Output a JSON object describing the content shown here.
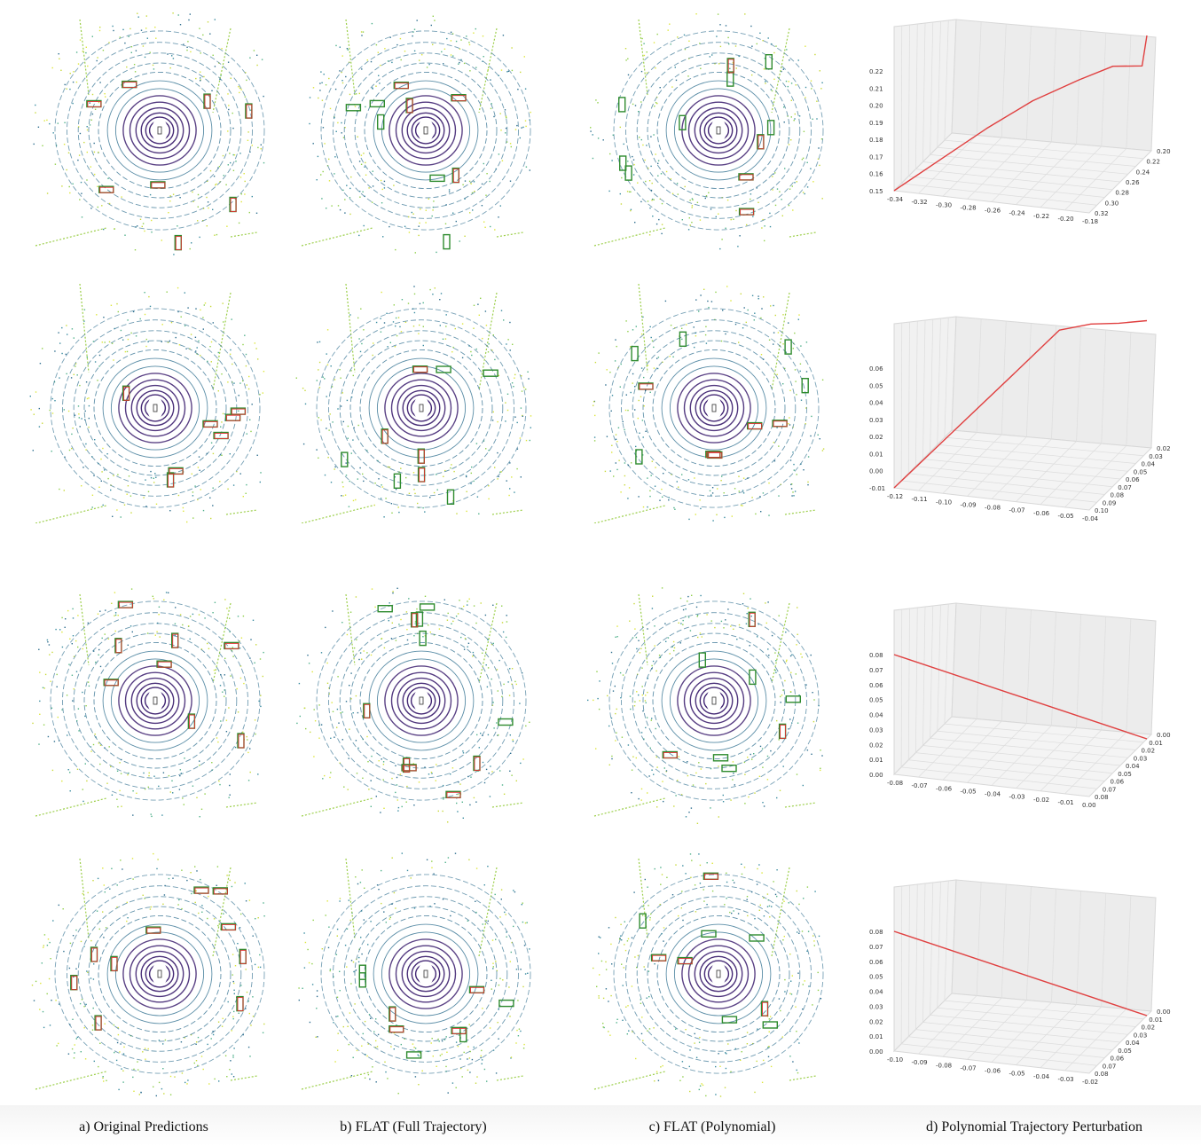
{
  "figure": {
    "captions": [
      "a) Original Predictions",
      "b) FLAT (Full Trajectory)",
      "c) FLAT (Polynomial)",
      "d) Polynomial Trajectory Perturbation"
    ],
    "colors": {
      "gt_box": "#2e8b2e",
      "pred_box": "#e03030",
      "trajectory": "#e04040",
      "ring_dark": "#3b1e6e",
      "ring_mid": "#2f6f8f",
      "far_points": "#c8d93a"
    },
    "icons": [
      "lidar-bev-scene",
      "3d-trajectory-plot"
    ]
  },
  "chart_data": [
    {
      "type": "line",
      "dims": 3,
      "x_ticks": [
        "-0.34",
        "-0.32",
        "-0.30",
        "-0.28",
        "-0.26",
        "-0.24",
        "-0.22",
        "-0.20",
        "-0.18"
      ],
      "y_ticks": [
        "0.20",
        "0.22",
        "0.24",
        "0.26",
        "0.28",
        "0.30",
        "0.32"
      ],
      "z_ticks": [
        "0.15",
        "0.16",
        "0.17",
        "0.18",
        "0.19",
        "0.20",
        "0.21",
        "0.22"
      ],
      "series": [
        {
          "x": [
            -0.34,
            -0.31,
            -0.28,
            -0.25,
            -0.22,
            -0.2,
            -0.18,
            -0.18
          ],
          "y": [
            0.32,
            0.3,
            0.28,
            0.26,
            0.24,
            0.22,
            0.21,
            0.2
          ],
          "z": [
            0.15,
            0.165,
            0.18,
            0.193,
            0.202,
            0.206,
            0.205,
            0.22
          ]
        }
      ]
    },
    {
      "type": "line",
      "dims": 3,
      "x_ticks": [
        "-0.12",
        "-0.11",
        "-0.10",
        "-0.09",
        "-0.08",
        "-0.07",
        "-0.06",
        "-0.05",
        "-0.04"
      ],
      "y_ticks": [
        "0.02",
        "0.03",
        "0.04",
        "0.05",
        "0.06",
        "0.07",
        "0.08",
        "0.09",
        "0.10"
      ],
      "z_ticks": [
        "-0.01",
        "0.00",
        "0.01",
        "0.02",
        "0.03",
        "0.04",
        "0.05",
        "0.06"
      ],
      "series": [
        {
          "x": [
            -0.12,
            -0.1,
            -0.08,
            -0.07,
            -0.06,
            -0.05,
            -0.04
          ],
          "y": [
            0.1,
            0.08,
            0.06,
            0.04,
            0.03,
            0.025,
            0.02
          ],
          "z": [
            -0.01,
            0.02,
            0.05,
            0.065,
            0.066,
            0.066,
            0.067
          ]
        }
      ]
    },
    {
      "type": "line",
      "dims": 3,
      "x_ticks": [
        "-0.08",
        "-0.07",
        "-0.06",
        "-0.05",
        "-0.04",
        "-0.03",
        "-0.02",
        "-0.01",
        "0.00"
      ],
      "y_ticks": [
        "0.00",
        "0.01",
        "0.02",
        "0.03",
        "0.04",
        "0.05",
        "0.06",
        "0.07",
        "0.08"
      ],
      "z_ticks": [
        "0.00",
        "0.01",
        "0.02",
        "0.03",
        "0.04",
        "0.05",
        "0.06",
        "0.07",
        "0.08"
      ],
      "series": [
        {
          "x": [
            -0.08,
            0.0
          ],
          "y": [
            0.08,
            0.0
          ],
          "z": [
            0.08,
            0.0
          ]
        }
      ]
    },
    {
      "type": "line",
      "dims": 3,
      "x_ticks": [
        "-0.10",
        "-0.09",
        "-0.08",
        "-0.07",
        "-0.06",
        "-0.05",
        "-0.04",
        "-0.03",
        "-0.02"
      ],
      "y_ticks": [
        "0.00",
        "0.01",
        "0.02",
        "0.03",
        "0.04",
        "0.05",
        "0.06",
        "0.07",
        "0.08"
      ],
      "z_ticks": [
        "0.00",
        "0.01",
        "0.02",
        "0.03",
        "0.04",
        "0.05",
        "0.06",
        "0.07",
        "0.08"
      ],
      "series": [
        {
          "x": [
            -0.1,
            -0.02
          ],
          "y": [
            0.08,
            0.0
          ],
          "z": [
            0.08,
            0.0
          ]
        }
      ]
    }
  ]
}
